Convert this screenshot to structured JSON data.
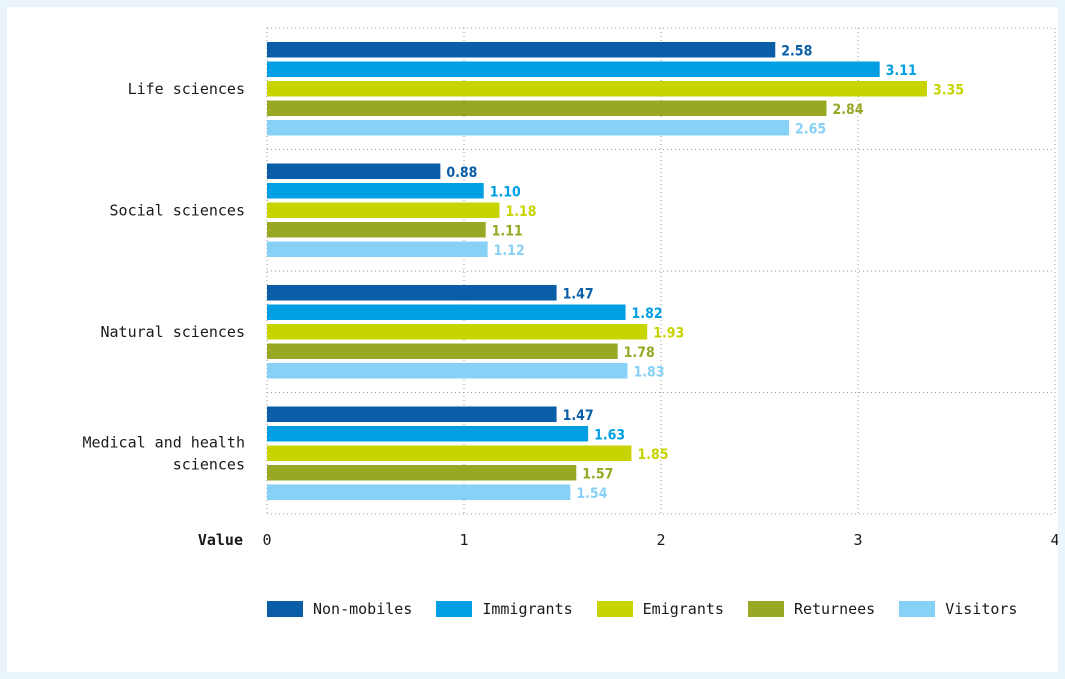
{
  "chart_data": {
    "type": "bar",
    "orientation": "horizontal",
    "categories": [
      "Life sciences",
      "Social sciences",
      "Natural sciences",
      "Medical and health sciences"
    ],
    "series": [
      {
        "name": "Non-mobiles",
        "color": "#0a5ea8",
        "values": [
          2.58,
          0.88,
          1.47,
          1.47
        ],
        "labels": [
          "2.58",
          "0.88",
          "1.47",
          "1.47"
        ]
      },
      {
        "name": "Immigrants",
        "color": "#009fe3",
        "values": [
          3.11,
          1.1,
          1.82,
          1.63
        ],
        "labels": [
          "3.11",
          "1.10",
          "1.82",
          "1.63"
        ]
      },
      {
        "name": "Emigrants",
        "color": "#c8d400",
        "values": [
          3.35,
          1.18,
          1.93,
          1.85
        ],
        "labels": [
          "3.35",
          "1.18",
          "1.93",
          "1.85"
        ]
      },
      {
        "name": "Returnees",
        "color": "#98a825",
        "values": [
          2.84,
          1.11,
          1.78,
          1.57
        ],
        "labels": [
          "2.84",
          "1.11",
          "1.78",
          "1.57"
        ]
      },
      {
        "name": "Visitors",
        "color": "#86d1f5",
        "values": [
          2.65,
          1.12,
          1.83,
          1.54
        ],
        "labels": [
          "2.65",
          "1.12",
          "1.83",
          "1.54"
        ]
      }
    ],
    "xlabel": "Value",
    "xlim": [
      0,
      4
    ],
    "xticks": [
      "0",
      "1",
      "2",
      "3",
      "4"
    ],
    "grid": true,
    "legend_position": "bottom"
  }
}
